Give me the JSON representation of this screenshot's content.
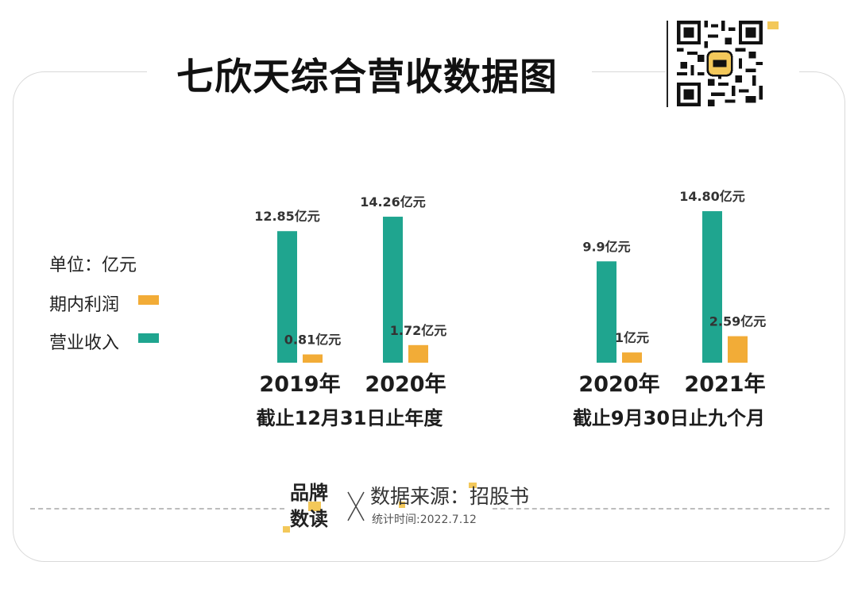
{
  "title": "七欣天综合营收数据图",
  "legend": {
    "unit_label": "单位：亿元",
    "items": [
      {
        "label": "期内利润",
        "color": "#f2ac37"
      },
      {
        "label": "营业收入",
        "color": "#1fa58f"
      }
    ]
  },
  "chart_data": {
    "type": "bar",
    "title": "七欣天综合营收数据图",
    "unit": "亿元",
    "groups": [
      {
        "caption": "截止12月31日止年度",
        "categories": [
          "2019年",
          "2020年"
        ],
        "series": [
          {
            "name": "营业收入",
            "values": [
              12.85,
              14.26
            ],
            "labels": [
              "12.85亿元",
              "14.26亿元"
            ]
          },
          {
            "name": "期内利润",
            "values": [
              0.81,
              1.72
            ],
            "labels": [
              "0.81亿元",
              "1.72亿元"
            ]
          }
        ]
      },
      {
        "caption": "截止9月30日止九个月",
        "categories": [
          "2020年",
          "2021年"
        ],
        "series": [
          {
            "name": "营业收入",
            "values": [
              9.9,
              14.8
            ],
            "labels": [
              "9.9亿元",
              "14.80亿元"
            ]
          },
          {
            "name": "期内利润",
            "values": [
              1,
              2.59
            ],
            "labels": [
              "1亿元",
              "2.59亿元"
            ]
          }
        ]
      }
    ],
    "colors": {
      "营业收入": "#1fa58f",
      "期内利润": "#f2ac37"
    }
  },
  "footer": {
    "brand_line1": "品牌",
    "brand_line2": "数读",
    "source": "数据来源：招股书",
    "stat_time": "统计时间:2022.7.12"
  }
}
